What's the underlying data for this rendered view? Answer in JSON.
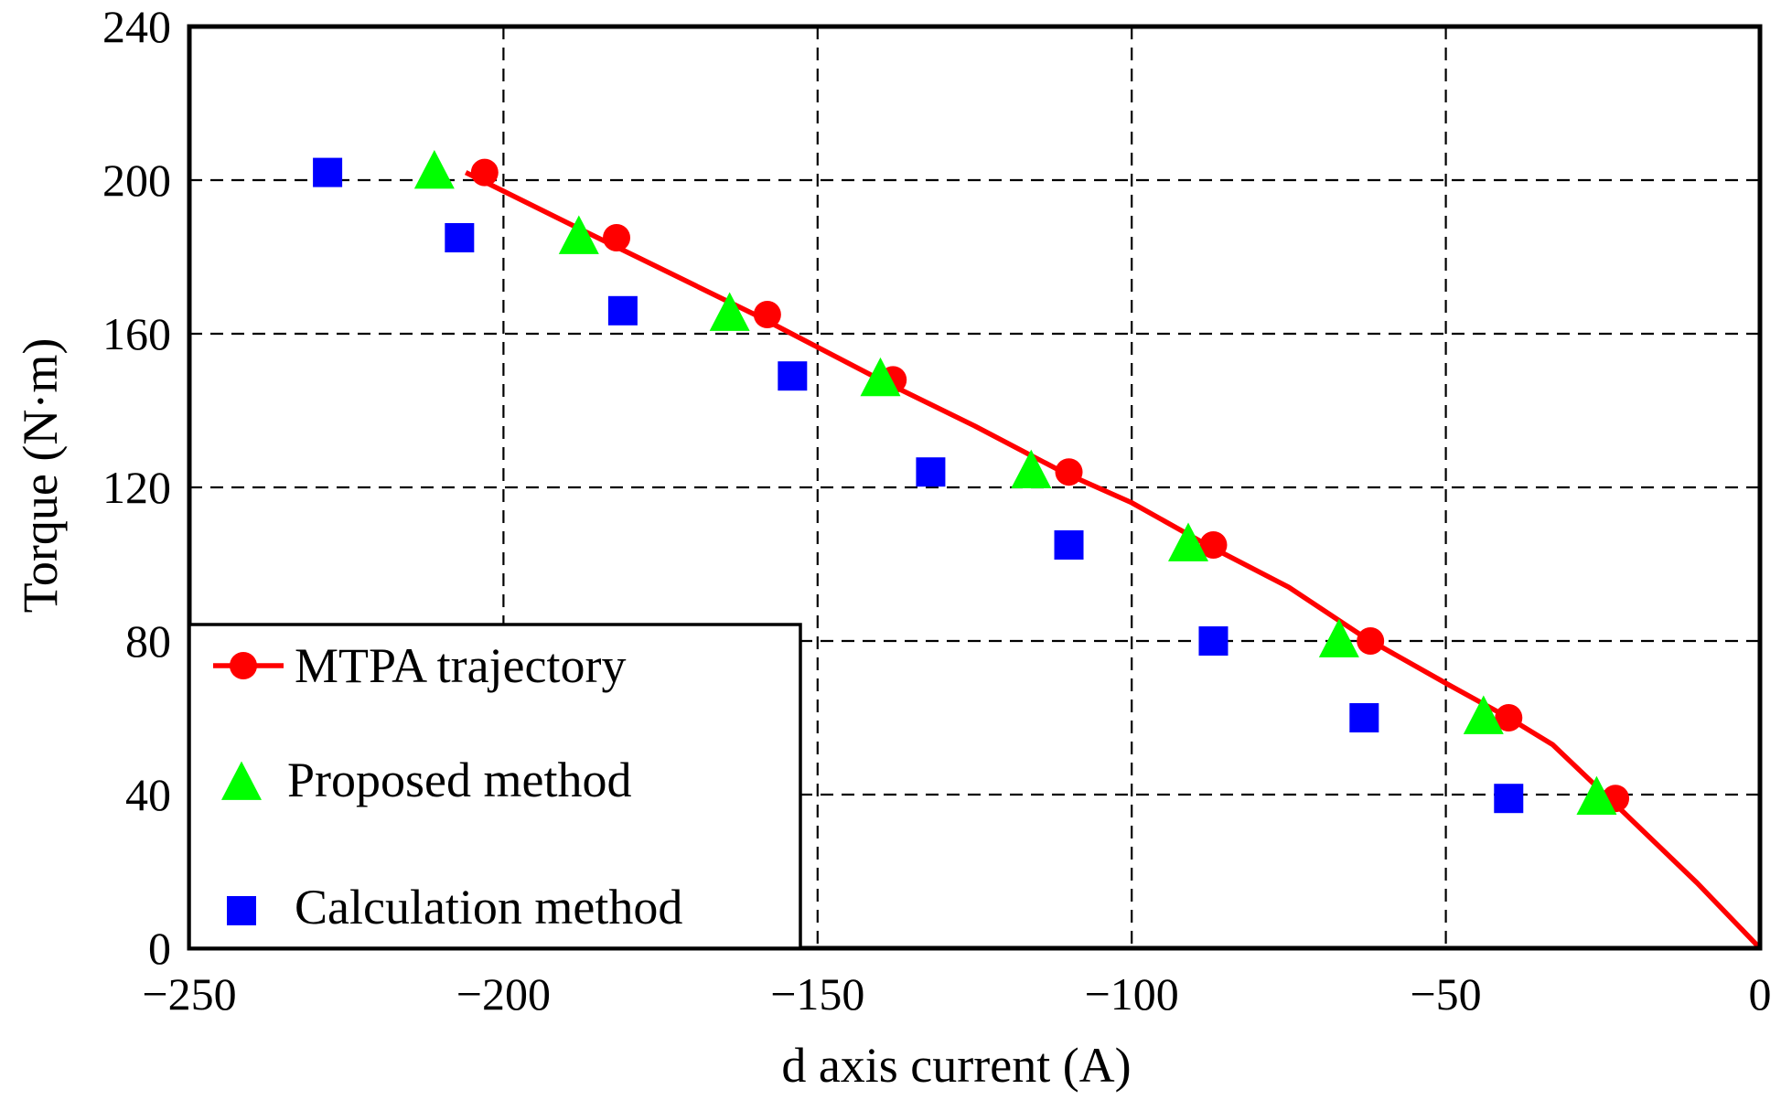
{
  "chart_data": {
    "type": "scatter",
    "title": "",
    "xlabel": "d axis current (A)",
    "ylabel": "Torque (N·m)",
    "xlim": [
      -250,
      0
    ],
    "ylim": [
      0,
      240
    ],
    "x_ticks": [
      -250,
      -200,
      -150,
      -100,
      -50,
      0
    ],
    "x_tick_labels": [
      "−250",
      "−200",
      "−150",
      "−100",
      "−50",
      "0"
    ],
    "y_ticks": [
      0,
      40,
      80,
      120,
      160,
      200,
      240
    ],
    "y_tick_labels": [
      "0",
      "40",
      "80",
      "120",
      "160",
      "200",
      "240"
    ],
    "grid": true,
    "legend_position": "bottom-left",
    "series": [
      {
        "name": "MTPA trajectory",
        "kind": "line-markers",
        "color": "#ff0000",
        "marker": "circle",
        "line": {
          "x": [
            -206,
            -185,
            -160,
            -140,
            -125,
            -111,
            -100,
            -88,
            -75,
            -63,
            -50,
            -40,
            -33,
            -24,
            -10,
            0
          ],
          "y": [
            202,
            185,
            165,
            148,
            136,
            124,
            116,
            105,
            94,
            81,
            69,
            60,
            53,
            39,
            17,
            0
          ]
        },
        "markers": {
          "x": [
            -203,
            -182,
            -158,
            -138,
            -110,
            -87,
            -62,
            -40,
            -23
          ],
          "y": [
            202,
            185,
            165,
            148,
            124,
            105,
            80,
            60,
            39
          ]
        }
      },
      {
        "name": "Proposed method",
        "kind": "markers",
        "color": "#00ff00",
        "marker": "triangle",
        "x": [
          -211,
          -188,
          -164,
          -140,
          -116,
          -91,
          -67,
          -44,
          -26
        ],
        "y": [
          202,
          185,
          165,
          148,
          124,
          105,
          80,
          60,
          39
        ]
      },
      {
        "name": "Calculation method",
        "kind": "markers",
        "color": "#0000ff",
        "marker": "square",
        "x": [
          -228,
          -207,
          -181,
          -154,
          -132,
          -110,
          -87,
          -63,
          -40
        ],
        "y": [
          202,
          185,
          166,
          149,
          124,
          105,
          80,
          60,
          39
        ]
      }
    ]
  }
}
